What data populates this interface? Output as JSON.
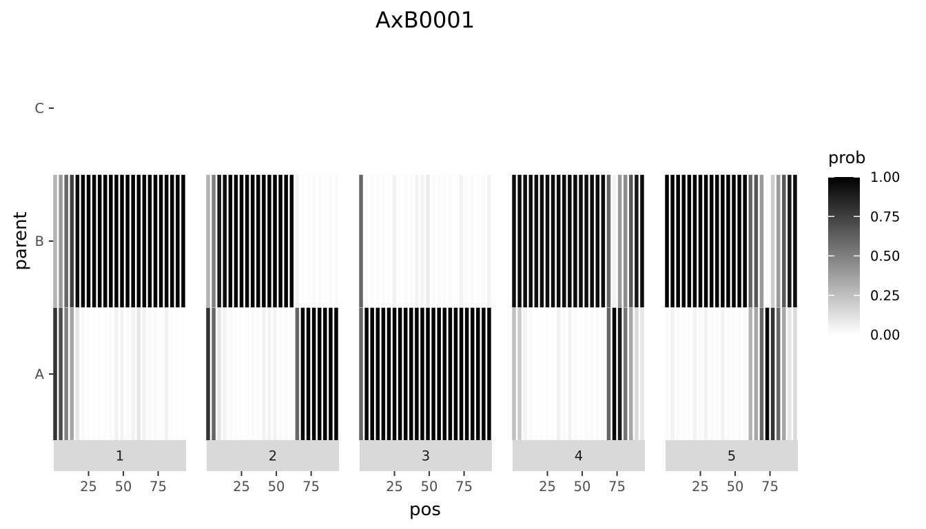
{
  "chart_data": {
    "type": "heatmap",
    "title": "AxB0001",
    "xlabel": "pos",
    "ylabel": "parent",
    "y_categories": [
      "A",
      "B",
      "C"
    ],
    "x_ticks": [
      25,
      50,
      75
    ],
    "x_range": [
      0,
      95
    ],
    "fill_scale": {
      "name": "prob",
      "low": "#ffffff",
      "high": "#000000",
      "limits": [
        0,
        1
      ],
      "breaks": [
        0,
        0.25,
        0.5,
        0.75,
        1
      ],
      "break_labels": [
        "0.00",
        "0.25",
        "0.50",
        "0.75",
        "1.00"
      ]
    },
    "positions": [
      1,
      5,
      9,
      13,
      17,
      21,
      25,
      29,
      33,
      37,
      41,
      45,
      49,
      53,
      57,
      61,
      65,
      69,
      73,
      77,
      81,
      85,
      89,
      93
    ],
    "panels": [
      {
        "label": "1",
        "A": [
          0.8,
          0.7,
          0.5,
          0.35,
          0.1,
          0.02,
          0.01,
          0.01,
          0.01,
          0.01,
          0.02,
          0.05,
          0.05,
          0.02,
          0.05,
          0.1,
          0.05,
          0.02,
          0.02,
          0.01,
          0.05,
          0.01,
          0.01,
          0.01
        ],
        "B": [
          0.3,
          0.4,
          0.6,
          0.75,
          0.95,
          0.99,
          0.99,
          0.99,
          0.99,
          0.99,
          0.99,
          0.99,
          0.99,
          0.99,
          0.99,
          0.99,
          0.99,
          0.99,
          0.99,
          0.99,
          0.99,
          0.99,
          0.99,
          0.99
        ]
      },
      {
        "label": "2",
        "A": [
          0.8,
          0.6,
          0.1,
          0.05,
          0.02,
          0.01,
          0.01,
          0.01,
          0.01,
          0.01,
          0.05,
          0.05,
          0.05,
          0.02,
          0.02,
          0.02,
          0.6,
          0.99,
          0.99,
          0.99,
          0.99,
          0.99,
          0.99,
          0.99
        ],
        "B": [
          0.3,
          0.5,
          0.9,
          0.95,
          0.99,
          0.99,
          0.99,
          0.99,
          0.99,
          0.99,
          0.99,
          0.99,
          0.99,
          0.99,
          0.99,
          0.99,
          0.05,
          0.01,
          0.01,
          0.02,
          0.02,
          0.01,
          0.02,
          0.02
        ]
      },
      {
        "label": "3",
        "A": [
          0.6,
          0.99,
          0.99,
          0.99,
          0.99,
          0.99,
          0.99,
          0.99,
          0.99,
          0.99,
          0.99,
          0.99,
          0.99,
          0.99,
          0.99,
          0.99,
          0.99,
          0.99,
          0.99,
          0.99,
          0.99,
          0.99,
          0.99,
          0.99
        ],
        "B": [
          0.6,
          0.02,
          0.01,
          0.01,
          0.02,
          0.01,
          0.05,
          0.01,
          0.02,
          0.01,
          0.05,
          0.05,
          0.08,
          0.02,
          0.02,
          0.01,
          0.02,
          0.01,
          0.05,
          0.01,
          0.02,
          0.01,
          0.02,
          0.05
        ]
      },
      {
        "label": "4",
        "A": [
          0.25,
          0.2,
          0.05,
          0.02,
          0.01,
          0.01,
          0.01,
          0.01,
          0.05,
          0.02,
          0.05,
          0.02,
          0.01,
          0.02,
          0.02,
          0.02,
          0.02,
          0.6,
          0.99,
          0.9,
          0.55,
          0.35,
          0.15,
          0.1
        ],
        "B": [
          0.95,
          0.95,
          0.95,
          0.95,
          0.95,
          0.95,
          0.95,
          0.95,
          0.95,
          0.95,
          0.95,
          0.95,
          0.95,
          0.95,
          0.95,
          0.95,
          0.95,
          0.6,
          0.05,
          0.4,
          0.45,
          0.65,
          0.9,
          0.95
        ]
      },
      {
        "label": "5",
        "A": [
          0.02,
          0.05,
          0.02,
          0.01,
          0.01,
          0.05,
          0.02,
          0.05,
          0.02,
          0.01,
          0.05,
          0.02,
          0.01,
          0.02,
          0.02,
          0.3,
          0.35,
          0.6,
          0.99,
          0.8,
          0.6,
          0.35,
          0.1,
          0.15
        ],
        "B": [
          0.99,
          0.99,
          0.99,
          0.99,
          0.99,
          0.99,
          0.99,
          0.99,
          0.99,
          0.99,
          0.99,
          0.99,
          0.99,
          0.99,
          0.99,
          0.6,
          0.65,
          0.4,
          0.01,
          0.2,
          0.4,
          0.65,
          0.9,
          0.95
        ]
      }
    ]
  }
}
